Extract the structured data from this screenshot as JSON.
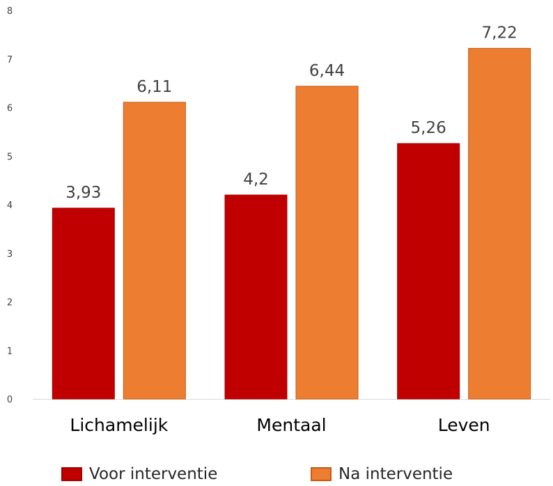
{
  "chart_data": {
    "type": "bar",
    "categories": [
      "Lichamelijk",
      "Mentaal",
      "Leven"
    ],
    "series": [
      {
        "name": "Voor interventie",
        "values": [
          3.93,
          4.2,
          5.26
        ],
        "labels": [
          "3,93",
          "4,2",
          "5,26"
        ],
        "color": "#c00000",
        "border": "#a50000"
      },
      {
        "name": "Na interventie",
        "values": [
          6.11,
          6.44,
          7.22
        ],
        "labels": [
          "6,11",
          "6,44",
          "7,22"
        ],
        "color": "#ed7d31",
        "border": "#c55a11"
      }
    ],
    "ylim": [
      0,
      8
    ],
    "yticks": [
      "0",
      "1",
      "2",
      "3",
      "4",
      "5",
      "6",
      "7",
      "8"
    ],
    "grid": false,
    "legend": "bottom",
    "title": "",
    "xlabel": "",
    "ylabel": ""
  }
}
